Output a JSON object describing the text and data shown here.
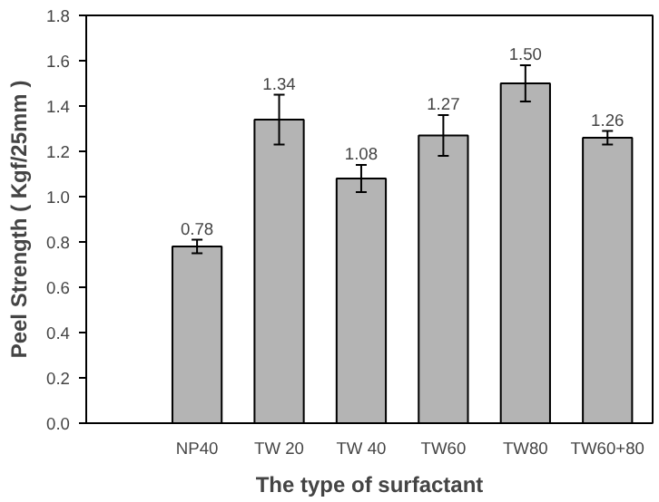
{
  "chart_data": {
    "type": "bar",
    "xlabel": "The type of surfactant",
    "ylabel": "Peel Strength ( Kgf/25mm )",
    "categories": [
      "NP40",
      "TW 20",
      "TW 40",
      "TW60",
      "TW80",
      "TW60+80"
    ],
    "values": [
      0.78,
      1.34,
      1.08,
      1.27,
      1.5,
      1.26
    ],
    "errors": [
      0.03,
      0.11,
      0.06,
      0.09,
      0.08,
      0.03
    ],
    "value_labels": [
      "0.78",
      "1.34",
      "1.08",
      "1.27",
      "1.50",
      "1.26"
    ],
    "color": "#b4b4b4",
    "ylim": [
      0,
      1.8
    ],
    "yticks": [
      {
        "value": 0,
        "label": "0.0"
      },
      {
        "value": 0.2,
        "label": "0.2"
      },
      {
        "value": 0.4,
        "label": "0.4"
      },
      {
        "value": 0.6,
        "label": "0.6"
      },
      {
        "value": 0.8,
        "label": "0.8"
      },
      {
        "value": 1.0,
        "label": "1.0"
      },
      {
        "value": 1.2,
        "label": "1.2"
      },
      {
        "value": 1.4,
        "label": "1.4"
      },
      {
        "value": 1.6,
        "label": "1.6"
      },
      {
        "value": 1.8,
        "label": "1.8"
      }
    ],
    "grid": false
  }
}
